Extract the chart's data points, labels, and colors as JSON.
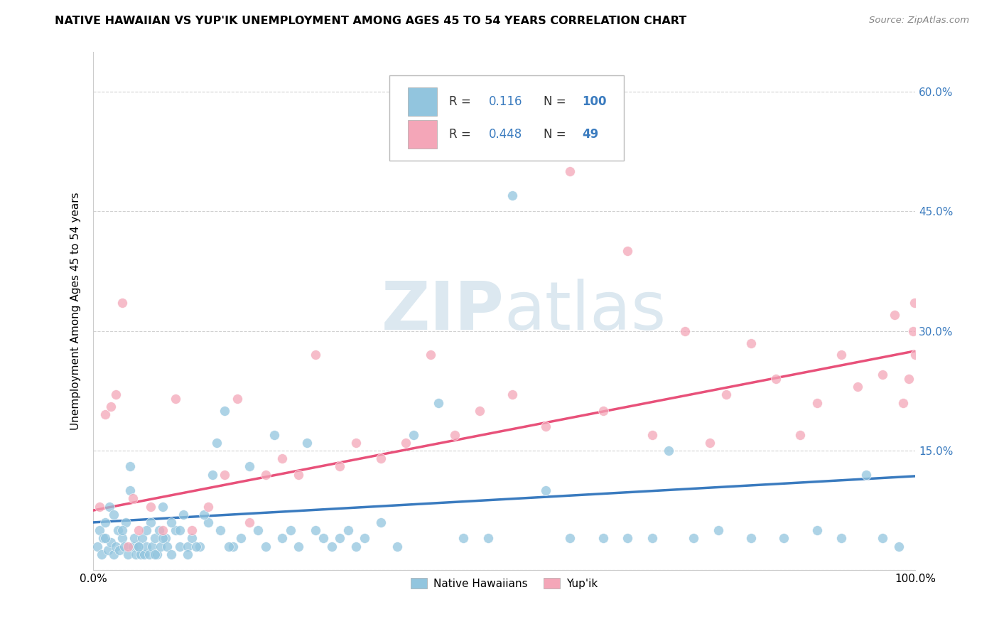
{
  "title": "NATIVE HAWAIIAN VS YUP'IK UNEMPLOYMENT AMONG AGES 45 TO 54 YEARS CORRELATION CHART",
  "source": "Source: ZipAtlas.com",
  "ylabel": "Unemployment Among Ages 45 to 54 years",
  "xlim": [
    0.0,
    1.0
  ],
  "ylim": [
    0.0,
    0.65
  ],
  "xticks": [
    0.0,
    0.2,
    0.4,
    0.6,
    0.8,
    1.0
  ],
  "xticklabels": [
    "0.0%",
    "",
    "",
    "",
    "",
    "100.0%"
  ],
  "yticks": [
    0.0,
    0.15,
    0.3,
    0.45,
    0.6
  ],
  "yticklabels": [
    "",
    "15.0%",
    "30.0%",
    "45.0%",
    "60.0%"
  ],
  "legend_label1": "Native Hawaiians",
  "legend_label2": "Yup'ik",
  "R1": "0.116",
  "N1": "100",
  "R2": "0.448",
  "N2": "49",
  "color_blue": "#92c5de",
  "color_pink": "#f4a6b8",
  "color_blue_line": "#3a7bbf",
  "color_pink_line": "#e8517a",
  "color_blue_text": "#3a7bbf",
  "watermark_color": "#dce8f0",
  "blue_trend_start": 0.06,
  "blue_trend_end": 0.118,
  "pink_trend_start": 0.075,
  "pink_trend_end": 0.275,
  "blue_x": [
    0.005,
    0.008,
    0.01,
    0.012,
    0.015,
    0.018,
    0.02,
    0.022,
    0.025,
    0.028,
    0.03,
    0.032,
    0.035,
    0.038,
    0.04,
    0.042,
    0.045,
    0.048,
    0.05,
    0.052,
    0.055,
    0.058,
    0.06,
    0.062,
    0.065,
    0.068,
    0.07,
    0.072,
    0.075,
    0.078,
    0.08,
    0.082,
    0.085,
    0.088,
    0.09,
    0.095,
    0.1,
    0.105,
    0.11,
    0.115,
    0.12,
    0.13,
    0.14,
    0.15,
    0.16,
    0.17,
    0.18,
    0.19,
    0.2,
    0.21,
    0.22,
    0.23,
    0.24,
    0.25,
    0.26,
    0.27,
    0.28,
    0.29,
    0.3,
    0.31,
    0.32,
    0.33,
    0.35,
    0.37,
    0.39,
    0.42,
    0.45,
    0.48,
    0.51,
    0.55,
    0.58,
    0.62,
    0.65,
    0.68,
    0.7,
    0.73,
    0.76,
    0.8,
    0.84,
    0.88,
    0.91,
    0.94,
    0.96,
    0.98,
    0.015,
    0.025,
    0.035,
    0.045,
    0.055,
    0.065,
    0.075,
    0.085,
    0.095,
    0.105,
    0.115,
    0.125,
    0.135,
    0.145,
    0.155,
    0.165
  ],
  "blue_y": [
    0.03,
    0.05,
    0.02,
    0.04,
    0.06,
    0.025,
    0.08,
    0.035,
    0.02,
    0.03,
    0.05,
    0.025,
    0.04,
    0.03,
    0.06,
    0.02,
    0.1,
    0.03,
    0.04,
    0.02,
    0.03,
    0.02,
    0.04,
    0.02,
    0.03,
    0.02,
    0.06,
    0.03,
    0.04,
    0.02,
    0.05,
    0.03,
    0.08,
    0.04,
    0.03,
    0.02,
    0.05,
    0.03,
    0.07,
    0.03,
    0.04,
    0.03,
    0.06,
    0.16,
    0.2,
    0.03,
    0.04,
    0.13,
    0.05,
    0.03,
    0.17,
    0.04,
    0.05,
    0.03,
    0.16,
    0.05,
    0.04,
    0.03,
    0.04,
    0.05,
    0.03,
    0.04,
    0.06,
    0.03,
    0.17,
    0.21,
    0.04,
    0.04,
    0.47,
    0.1,
    0.04,
    0.04,
    0.04,
    0.04,
    0.15,
    0.04,
    0.05,
    0.04,
    0.04,
    0.05,
    0.04,
    0.12,
    0.04,
    0.03,
    0.04,
    0.07,
    0.05,
    0.13,
    0.03,
    0.05,
    0.02,
    0.04,
    0.06,
    0.05,
    0.02,
    0.03,
    0.07,
    0.12,
    0.05,
    0.03
  ],
  "pink_x": [
    0.008,
    0.015,
    0.022,
    0.028,
    0.035,
    0.042,
    0.048,
    0.055,
    0.07,
    0.085,
    0.1,
    0.12,
    0.14,
    0.16,
    0.175,
    0.19,
    0.21,
    0.23,
    0.25,
    0.27,
    0.3,
    0.32,
    0.35,
    0.38,
    0.41,
    0.44,
    0.47,
    0.51,
    0.55,
    0.58,
    0.62,
    0.65,
    0.68,
    0.72,
    0.75,
    0.77,
    0.8,
    0.83,
    0.86,
    0.88,
    0.91,
    0.93,
    0.96,
    0.975,
    0.985,
    0.992,
    0.997,
    0.999,
    1.0
  ],
  "pink_y": [
    0.08,
    0.195,
    0.205,
    0.22,
    0.335,
    0.03,
    0.09,
    0.05,
    0.08,
    0.05,
    0.215,
    0.05,
    0.08,
    0.12,
    0.215,
    0.06,
    0.12,
    0.14,
    0.12,
    0.27,
    0.13,
    0.16,
    0.14,
    0.16,
    0.27,
    0.17,
    0.2,
    0.22,
    0.18,
    0.5,
    0.2,
    0.4,
    0.17,
    0.3,
    0.16,
    0.22,
    0.285,
    0.24,
    0.17,
    0.21,
    0.27,
    0.23,
    0.245,
    0.32,
    0.21,
    0.24,
    0.3,
    0.335,
    0.27
  ]
}
